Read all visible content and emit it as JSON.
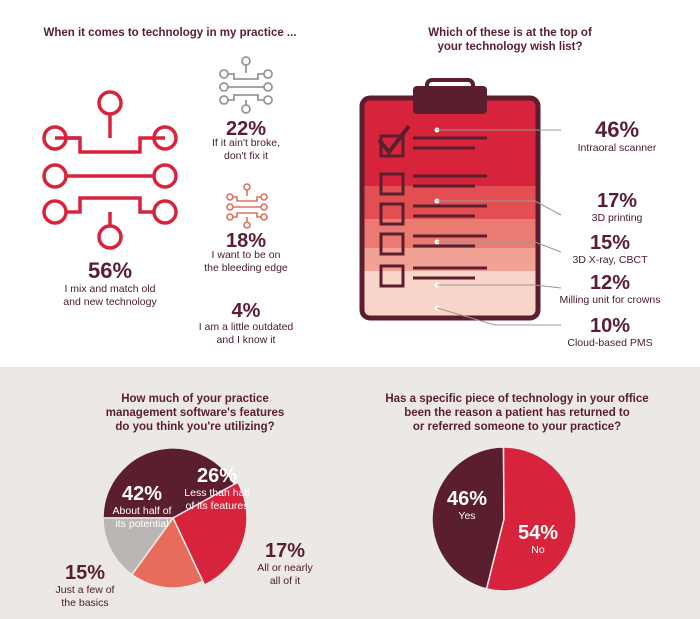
{
  "colors": {
    "maroon": "#5b1e2e",
    "red": "#d8233c",
    "salmon": "#e86c5c",
    "gray": "#b9b6b3",
    "icon_gray": "#9a9896",
    "icon_coral": "#e07060",
    "bottom_bg": "#ebe8e6"
  },
  "icons": [
    "circuit-icon-large",
    "circuit-icon-gray",
    "circuit-icon-coral",
    "clipboard-icon"
  ],
  "chart_data": [
    {
      "type": "bar",
      "title": "When it comes to technology in my practice ...",
      "categories": [
        "I mix and match old and new technology",
        "If it ain't broke, don't fix it",
        "I want to be on the bleeding edge",
        "I am a little outdated and I know it"
      ],
      "values": [
        56,
        22,
        18,
        4
      ],
      "value_labels": [
        "56%",
        "22%",
        "18%",
        "4%"
      ],
      "label_lines": [
        [
          "I mix and match old",
          "and new technology"
        ],
        [
          "If it ain't broke,",
          "don't fix it"
        ],
        [
          "I want to be on",
          "the bleeding edge"
        ],
        [
          "I am a little outdated",
          "and I know it"
        ]
      ]
    },
    {
      "type": "bar",
      "title_lines": [
        "Which of these is at the top of",
        "your technology wish list?"
      ],
      "categories": [
        "Intraoral scanner",
        "3D printing",
        "3D X-ray, CBCT",
        "Milling unit for crowns",
        "Cloud-based PMS"
      ],
      "values": [
        46,
        17,
        15,
        12,
        10
      ],
      "value_labels": [
        "46%",
        "17%",
        "15%",
        "12%",
        "10%"
      ]
    },
    {
      "type": "pie",
      "title_lines": [
        "How much of your practice",
        "management software's features",
        "do you think you're utilizing?"
      ],
      "categories": [
        "About half of its potential",
        "Less than half of its features",
        "All or nearly all of it",
        "Just a few of the basics"
      ],
      "values": [
        42,
        26,
        17,
        15
      ],
      "value_labels": [
        "42%",
        "26%",
        "17%",
        "15%"
      ],
      "label_lines": [
        [
          "About half of",
          "its potential"
        ],
        [
          "Less than half",
          "of its features"
        ],
        [
          "All or nearly",
          "all of it"
        ],
        [
          "Just a few of",
          "the basics"
        ]
      ],
      "colors": [
        "#5b1e2e",
        "#d8233c",
        "#e86c5c",
        "#b9b6b3"
      ]
    },
    {
      "type": "pie",
      "title_lines": [
        "Has a specific piece of technology in your office",
        "been the reason a patient has returned to",
        "or referred someone to your practice?"
      ],
      "categories": [
        "Yes",
        "No"
      ],
      "values": [
        46,
        54
      ],
      "value_labels": [
        "46%",
        "54%"
      ],
      "colors": [
        "#5b1e2e",
        "#d8233c"
      ]
    }
  ]
}
